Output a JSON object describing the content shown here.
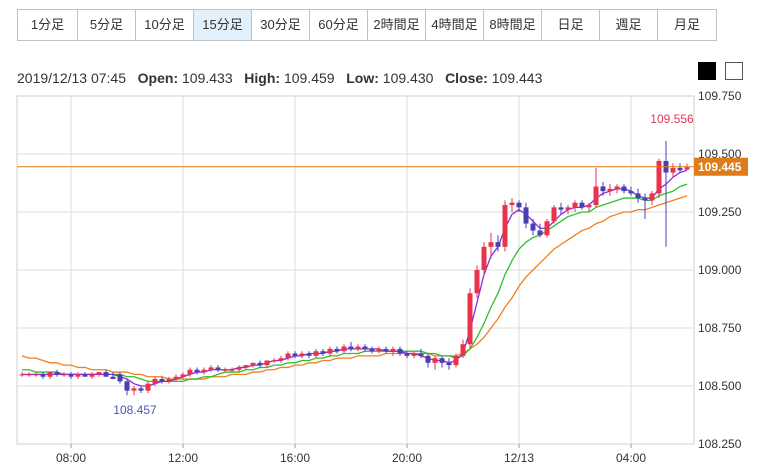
{
  "tabs": [
    {
      "label": "1分足",
      "w": 60
    },
    {
      "label": "5分足",
      "w": 58
    },
    {
      "label": "10分足",
      "w": 58
    },
    {
      "label": "15分足",
      "w": 58,
      "active": true
    },
    {
      "label": "30分足",
      "w": 58
    },
    {
      "label": "60分足",
      "w": 58
    },
    {
      "label": "2時間足",
      "w": 58
    },
    {
      "label": "4時間足",
      "w": 58
    },
    {
      "label": "8時間足",
      "w": 58
    },
    {
      "label": "日足",
      "w": 58
    },
    {
      "label": "週足",
      "w": 58
    },
    {
      "label": "月足",
      "w": 58
    }
  ],
  "ohlc": {
    "datetime": "2019/12/13 07:45",
    "open_label": "Open:",
    "open": "109.433",
    "high_label": "High:",
    "high": "109.459",
    "low_label": "Low:",
    "low": "109.430",
    "close_label": "Close:",
    "close": "109.443"
  },
  "colors": {
    "up": "#e8334a",
    "down": "#4b3fb0",
    "ma_short": "#8a2be2",
    "ma_mid": "#2fbf2f",
    "ma_long": "#f08020",
    "price_line": "#e07b1a",
    "grid": "#dddddd",
    "axis": "#999999"
  },
  "chart_data": {
    "type": "candlestick",
    "ylim": [
      108.25,
      109.75
    ],
    "yticks": [
      "109.750",
      "109.500",
      "109.250",
      "109.000",
      "108.750",
      "108.500",
      "108.250"
    ],
    "xticks": [
      "08:00",
      "12:00",
      "16:00",
      "20:00",
      "12/13",
      "04:00"
    ],
    "current_price": "109.445",
    "annotations": {
      "high": "109.556",
      "low": "108.457"
    },
    "candles": [
      [
        108.55,
        108.56,
        108.54,
        108.55
      ],
      [
        108.55,
        108.56,
        108.54,
        108.55
      ],
      [
        108.55,
        108.56,
        108.54,
        108.55
      ],
      [
        108.55,
        108.56,
        108.53,
        108.54
      ],
      [
        108.54,
        108.56,
        108.53,
        108.56
      ],
      [
        108.56,
        108.57,
        108.54,
        108.55
      ],
      [
        108.55,
        108.56,
        108.54,
        108.55
      ],
      [
        108.55,
        108.56,
        108.53,
        108.54
      ],
      [
        108.54,
        108.56,
        108.53,
        108.55
      ],
      [
        108.55,
        108.56,
        108.54,
        108.54
      ],
      [
        108.54,
        108.56,
        108.53,
        108.55
      ],
      [
        108.55,
        108.56,
        108.54,
        108.56
      ],
      [
        108.56,
        108.57,
        108.54,
        108.54
      ],
      [
        108.54,
        108.56,
        108.53,
        108.53
      ],
      [
        108.55,
        108.56,
        108.51,
        108.52
      ],
      [
        108.52,
        108.53,
        108.46,
        108.48
      ],
      [
        108.48,
        108.5,
        108.46,
        108.49
      ],
      [
        108.49,
        108.5,
        108.47,
        108.48
      ],
      [
        108.48,
        108.52,
        108.47,
        108.51
      ],
      [
        108.51,
        108.54,
        108.5,
        108.53
      ],
      [
        108.53,
        108.54,
        108.51,
        108.52
      ],
      [
        108.52,
        108.54,
        108.51,
        108.53
      ],
      [
        108.53,
        108.55,
        108.52,
        108.54
      ],
      [
        108.54,
        108.56,
        108.53,
        108.55
      ],
      [
        108.55,
        108.58,
        108.54,
        108.57
      ],
      [
        108.57,
        108.58,
        108.55,
        108.56
      ],
      [
        108.56,
        108.58,
        108.55,
        108.57
      ],
      [
        108.57,
        108.59,
        108.56,
        108.58
      ],
      [
        108.58,
        108.59,
        108.56,
        108.57
      ],
      [
        108.57,
        108.58,
        108.56,
        108.57
      ],
      [
        108.57,
        108.58,
        108.56,
        108.57
      ],
      [
        108.57,
        108.59,
        108.56,
        108.58
      ],
      [
        108.58,
        108.59,
        108.57,
        108.59
      ],
      [
        108.59,
        108.6,
        108.58,
        108.6
      ],
      [
        108.6,
        108.61,
        108.58,
        108.59
      ],
      [
        108.59,
        108.61,
        108.58,
        108.61
      ],
      [
        108.61,
        108.62,
        108.6,
        108.61
      ],
      [
        108.61,
        108.63,
        108.6,
        108.62
      ],
      [
        108.62,
        108.65,
        108.61,
        108.64
      ],
      [
        108.64,
        108.65,
        108.62,
        108.63
      ],
      [
        108.63,
        108.65,
        108.62,
        108.64
      ],
      [
        108.64,
        108.65,
        108.62,
        108.63
      ],
      [
        108.63,
        108.66,
        108.62,
        108.65
      ],
      [
        108.65,
        108.66,
        108.63,
        108.64
      ],
      [
        108.64,
        108.67,
        108.63,
        108.66
      ],
      [
        108.66,
        108.67,
        108.64,
        108.65
      ],
      [
        108.65,
        108.68,
        108.64,
        108.67
      ],
      [
        108.67,
        108.69,
        108.65,
        108.66
      ],
      [
        108.66,
        108.68,
        108.65,
        108.67
      ],
      [
        108.67,
        108.68,
        108.65,
        108.66
      ],
      [
        108.66,
        108.67,
        108.64,
        108.65
      ],
      [
        108.65,
        108.67,
        108.64,
        108.66
      ],
      [
        108.66,
        108.67,
        108.64,
        108.65
      ],
      [
        108.65,
        108.67,
        108.63,
        108.66
      ],
      [
        108.66,
        108.67,
        108.63,
        108.64
      ],
      [
        108.64,
        108.65,
        108.62,
        108.63
      ],
      [
        108.63,
        108.65,
        108.62,
        108.64
      ],
      [
        108.64,
        108.66,
        108.62,
        108.63
      ],
      [
        108.63,
        108.64,
        108.58,
        108.6
      ],
      [
        108.6,
        108.63,
        108.57,
        108.62
      ],
      [
        108.62,
        108.63,
        108.58,
        108.6
      ],
      [
        108.6,
        108.62,
        108.57,
        108.59
      ],
      [
        108.59,
        108.64,
        108.58,
        108.63
      ],
      [
        108.63,
        108.7,
        108.62,
        108.68
      ],
      [
        108.68,
        108.92,
        108.66,
        108.9
      ],
      [
        108.9,
        109.02,
        108.88,
        109.0
      ],
      [
        109.0,
        109.12,
        108.98,
        109.1
      ],
      [
        109.1,
        109.16,
        109.05,
        109.12
      ],
      [
        109.12,
        109.15,
        109.08,
        109.1
      ],
      [
        109.1,
        109.3,
        109.08,
        109.28
      ],
      [
        109.28,
        109.31,
        109.25,
        109.29
      ],
      [
        109.29,
        109.3,
        109.25,
        109.27
      ],
      [
        109.27,
        109.29,
        109.18,
        109.2
      ],
      [
        109.2,
        109.22,
        109.15,
        109.17
      ],
      [
        109.17,
        109.2,
        109.14,
        109.15
      ],
      [
        109.15,
        109.22,
        109.14,
        109.21
      ],
      [
        109.21,
        109.28,
        109.2,
        109.27
      ],
      [
        109.27,
        109.29,
        109.24,
        109.26
      ],
      [
        109.26,
        109.28,
        109.24,
        109.27
      ],
      [
        109.27,
        109.3,
        109.25,
        109.29
      ],
      [
        109.29,
        109.3,
        109.26,
        109.27
      ],
      [
        109.27,
        109.29,
        109.25,
        109.28
      ],
      [
        109.28,
        109.44,
        109.27,
        109.36
      ],
      [
        109.36,
        109.38,
        109.32,
        109.34
      ],
      [
        109.34,
        109.37,
        109.32,
        109.35
      ],
      [
        109.35,
        109.37,
        109.33,
        109.36
      ],
      [
        109.36,
        109.37,
        109.33,
        109.34
      ],
      [
        109.34,
        109.36,
        109.32,
        109.33
      ],
      [
        109.33,
        109.35,
        109.29,
        109.31
      ],
      [
        109.31,
        109.33,
        109.22,
        109.3
      ],
      [
        109.3,
        109.34,
        109.28,
        109.33
      ],
      [
        109.33,
        109.48,
        109.31,
        109.47
      ],
      [
        109.47,
        109.556,
        109.1,
        109.42
      ],
      [
        109.42,
        109.46,
        109.4,
        109.44
      ],
      [
        109.44,
        109.46,
        109.42,
        109.43
      ],
      [
        109.433,
        109.459,
        109.43,
        109.443
      ]
    ],
    "ma_short": [
      108.55,
      108.55,
      108.55,
      108.55,
      108.55,
      108.55,
      108.55,
      108.55,
      108.55,
      108.55,
      108.55,
      108.55,
      108.55,
      108.55,
      108.54,
      108.53,
      108.51,
      108.5,
      108.5,
      108.51,
      108.52,
      108.52,
      108.53,
      108.54,
      108.55,
      108.56,
      108.56,
      108.57,
      108.57,
      108.57,
      108.57,
      108.58,
      108.58,
      108.59,
      108.59,
      108.6,
      108.61,
      108.61,
      108.62,
      108.63,
      108.63,
      108.64,
      108.64,
      108.64,
      108.65,
      108.65,
      108.66,
      108.66,
      108.66,
      108.66,
      108.66,
      108.66,
      108.65,
      108.65,
      108.65,
      108.64,
      108.64,
      108.63,
      108.62,
      108.61,
      108.61,
      108.6,
      108.61,
      108.64,
      108.74,
      108.86,
      108.98,
      109.06,
      109.1,
      109.18,
      109.24,
      109.26,
      109.24,
      109.21,
      109.18,
      109.18,
      109.21,
      109.24,
      109.26,
      109.27,
      109.27,
      109.28,
      109.31,
      109.33,
      109.34,
      109.35,
      109.35,
      109.34,
      109.32,
      109.31,
      109.31,
      109.35,
      109.37,
      109.4,
      109.42,
      109.43
    ],
    "ma_mid": [
      108.57,
      108.57,
      108.56,
      108.56,
      108.56,
      108.56,
      108.55,
      108.55,
      108.55,
      108.55,
      108.55,
      108.55,
      108.55,
      108.55,
      108.55,
      108.54,
      108.54,
      108.53,
      108.52,
      108.52,
      108.52,
      108.52,
      108.52,
      108.52,
      108.53,
      108.53,
      108.54,
      108.54,
      108.55,
      108.56,
      108.56,
      108.56,
      108.57,
      108.57,
      108.58,
      108.58,
      108.59,
      108.59,
      108.6,
      108.6,
      108.61,
      108.61,
      108.62,
      108.62,
      108.63,
      108.63,
      108.64,
      108.64,
      108.64,
      108.65,
      108.65,
      108.65,
      108.65,
      108.65,
      108.65,
      108.65,
      108.65,
      108.65,
      108.64,
      108.64,
      108.63,
      108.63,
      108.62,
      108.63,
      108.66,
      108.71,
      108.77,
      108.84,
      108.9,
      108.98,
      109.04,
      109.09,
      109.12,
      109.14,
      109.15,
      109.17,
      109.19,
      109.21,
      109.23,
      109.24,
      109.25,
      109.25,
      109.27,
      109.28,
      109.29,
      109.3,
      109.31,
      109.31,
      109.31,
      109.3,
      109.3,
      109.32,
      109.33,
      109.34,
      109.36,
      109.37
    ],
    "ma_long": [
      108.63,
      108.62,
      108.62,
      108.61,
      108.6,
      108.6,
      108.59,
      108.59,
      108.58,
      108.58,
      108.57,
      108.57,
      108.57,
      108.56,
      108.56,
      108.56,
      108.55,
      108.55,
      108.54,
      108.54,
      108.54,
      108.53,
      108.53,
      108.53,
      108.53,
      108.53,
      108.53,
      108.54,
      108.54,
      108.54,
      108.55,
      108.55,
      108.55,
      108.56,
      108.56,
      108.57,
      108.57,
      108.58,
      108.58,
      108.59,
      108.59,
      108.6,
      108.6,
      108.61,
      108.61,
      108.62,
      108.62,
      108.62,
      108.63,
      108.63,
      108.63,
      108.63,
      108.64,
      108.64,
      108.64,
      108.64,
      108.64,
      108.64,
      108.64,
      108.63,
      108.63,
      108.63,
      108.63,
      108.64,
      108.66,
      108.68,
      108.71,
      108.75,
      108.79,
      108.84,
      108.88,
      108.93,
      108.97,
      109.0,
      109.03,
      109.06,
      109.09,
      109.11,
      109.13,
      109.15,
      109.17,
      109.18,
      109.2,
      109.21,
      109.23,
      109.24,
      109.25,
      109.25,
      109.26,
      109.26,
      109.27,
      109.28,
      109.29,
      109.3,
      109.31,
      109.32
    ]
  }
}
